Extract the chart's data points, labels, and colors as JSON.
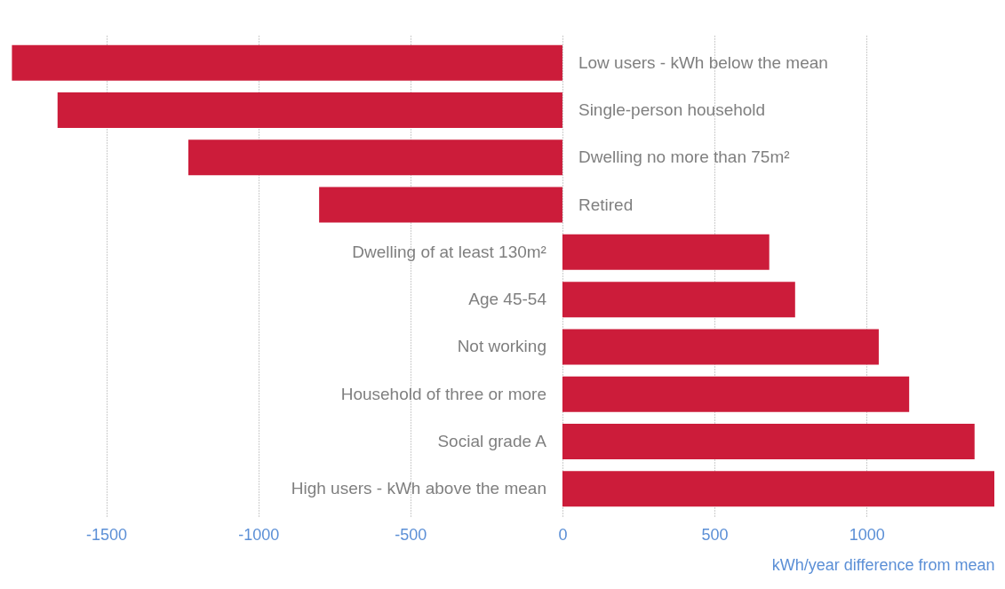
{
  "chart_data": {
    "type": "bar",
    "orientation": "horizontal",
    "xlabel": "kWh/year difference from mean",
    "categories": [
      "Low users - kWh below the mean",
      "Single-person household",
      "Dwelling no more than 75m²",
      "Retired",
      "Dwelling of at least 130m²",
      "Age 45-54",
      "Not working",
      "Household of three or more",
      "Social grade A",
      "High users - kWh above the mean"
    ],
    "values": [
      -1810,
      -1660,
      -1230,
      -800,
      680,
      765,
      1040,
      1140,
      1355,
      1420
    ],
    "color": "#cc1c3a",
    "xlim": [
      -1820,
      1420
    ],
    "xticks": [
      -1500,
      -1000,
      -500,
      0,
      500,
      1000
    ],
    "grid": "x"
  }
}
